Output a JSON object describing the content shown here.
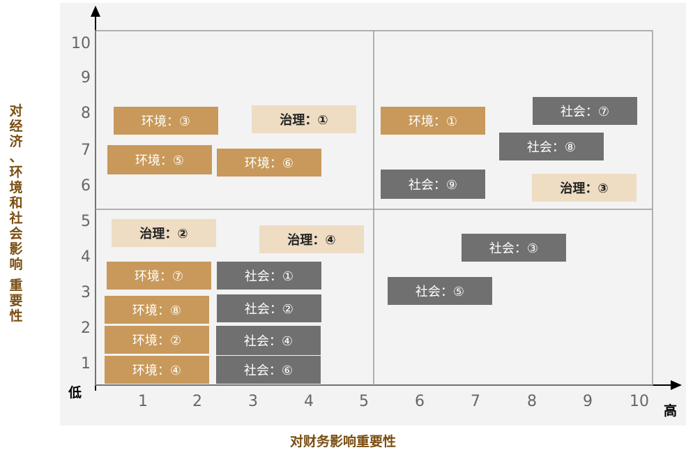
{
  "axes": {
    "y_title": "对经济、环境和社会影响 重要性",
    "x_title": "对财务影响重要性",
    "low_label": "低",
    "high_label": "高",
    "x_ticks": [
      "1",
      "2",
      "3",
      "4",
      "5",
      "6",
      "7",
      "8",
      "9",
      "10"
    ],
    "y_ticks": [
      "1",
      "2",
      "3",
      "4",
      "5",
      "6",
      "7",
      "8",
      "9",
      "10"
    ]
  },
  "colors": {
    "env": "#c8995a",
    "soc": "#707070",
    "gov": "#eedcc3",
    "grid": "#999999"
  },
  "items": [
    {
      "label": "环境：③",
      "cat": "env"
    },
    {
      "label": "治理：①",
      "cat": "gov"
    },
    {
      "label": "环境：⑤",
      "cat": "env"
    },
    {
      "label": "环境：⑥",
      "cat": "env"
    },
    {
      "label": "环境：①",
      "cat": "env"
    },
    {
      "label": "社会：⑦",
      "cat": "soc"
    },
    {
      "label": "社会：⑧",
      "cat": "soc"
    },
    {
      "label": "社会：⑨",
      "cat": "soc"
    },
    {
      "label": "治理：③",
      "cat": "gov"
    },
    {
      "label": "治理：②",
      "cat": "gov"
    },
    {
      "label": "治理：④",
      "cat": "gov"
    },
    {
      "label": "社会：③",
      "cat": "soc"
    },
    {
      "label": "环境：⑦",
      "cat": "env"
    },
    {
      "label": "社会：①",
      "cat": "soc"
    },
    {
      "label": "社会：⑤",
      "cat": "soc"
    },
    {
      "label": "环境：⑧",
      "cat": "env"
    },
    {
      "label": "社会：②",
      "cat": "soc"
    },
    {
      "label": "环境：②",
      "cat": "env"
    },
    {
      "label": "社会：④",
      "cat": "soc"
    },
    {
      "label": "环境：④",
      "cat": "env"
    },
    {
      "label": "社会：⑥",
      "cat": "soc"
    }
  ]
}
